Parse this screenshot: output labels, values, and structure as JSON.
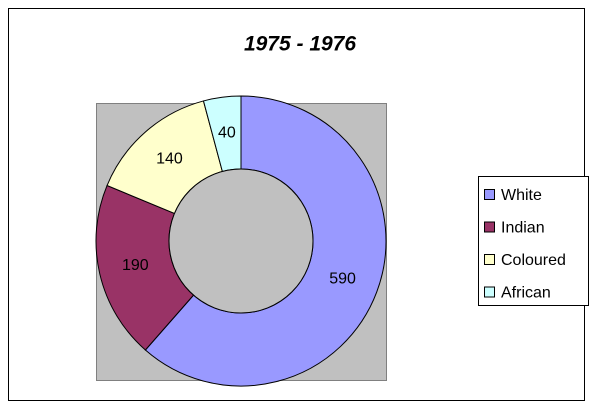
{
  "chart_data": {
    "type": "donut",
    "title": "1975 - 1976",
    "categories": [
      "White",
      "Indian",
      "Coloured",
      "African"
    ],
    "values": [
      590,
      190,
      140,
      40
    ],
    "colors": [
      "#9999ff",
      "#993366",
      "#ffffcc",
      "#ccffff"
    ],
    "legend": "right"
  }
}
